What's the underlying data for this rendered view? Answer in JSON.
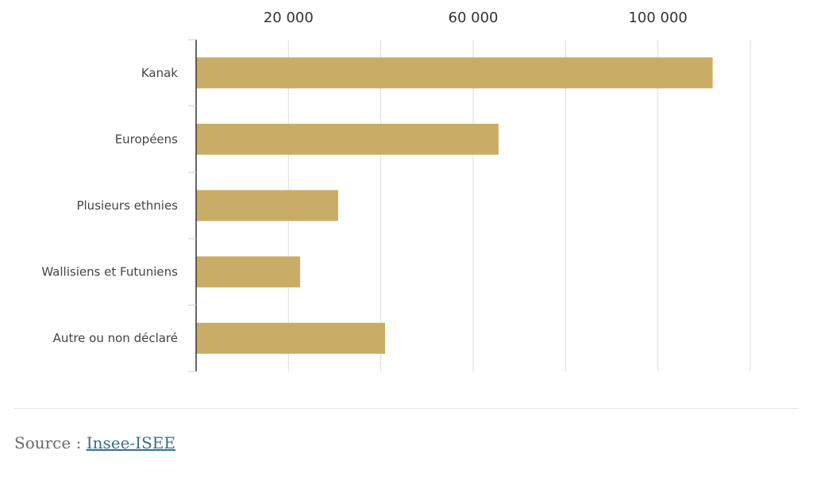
{
  "chart_data": {
    "type": "bar",
    "orientation": "horizontal",
    "categories": [
      "Kanak",
      "Européens",
      "Plusieurs ethnies",
      "Wallisiens et Futuniens",
      "Autre ou non déclaré"
    ],
    "values": [
      111856,
      65488,
      30758,
      22520,
      40914
    ],
    "xlim": [
      0,
      120000
    ],
    "tick_values": [
      20000,
      60000,
      100000
    ],
    "tick_labels": [
      "20 000",
      "60 000",
      "100 000"
    ],
    "gridline_values": [
      0,
      20000,
      40000,
      60000,
      80000,
      100000,
      120000
    ],
    "grid": true,
    "bar_color": "#c9ad67",
    "title": "",
    "xlabel": "",
    "ylabel": ""
  },
  "source": {
    "prefix": "Source : ",
    "link_text": "Insee-ISEE",
    "link_color": "#3a6e8f"
  }
}
